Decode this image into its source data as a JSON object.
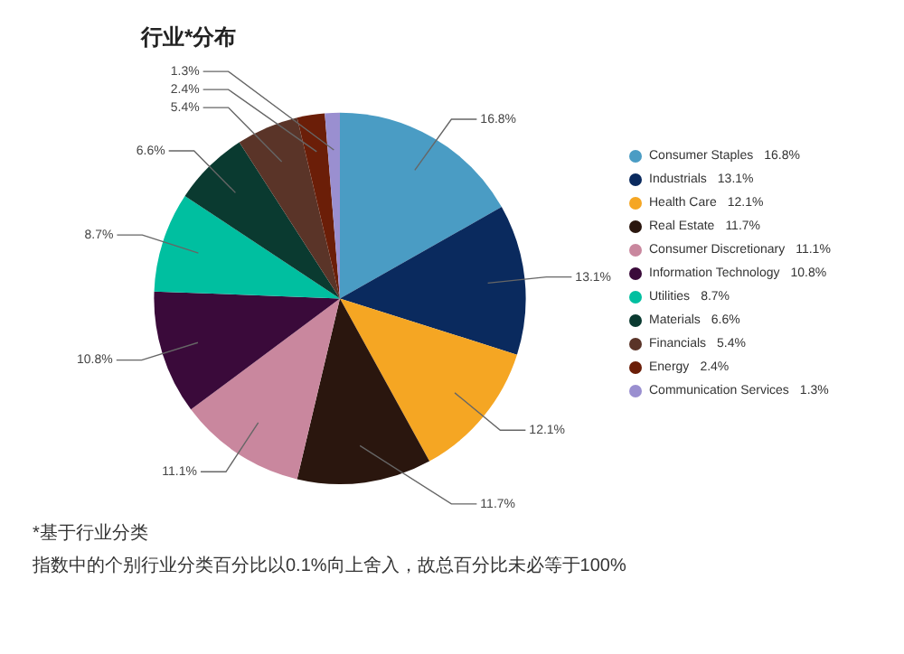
{
  "chart_data": {
    "type": "pie",
    "title": "行业*分布",
    "categories": [
      "Consumer Staples",
      "Industrials",
      "Health Care",
      "Real Estate",
      "Consumer Discretionary",
      "Information Technology",
      "Utilities",
      "Materials",
      "Financials",
      "Energy",
      "Communication Services"
    ],
    "values": [
      16.8,
      13.1,
      12.1,
      11.7,
      11.1,
      10.8,
      8.7,
      6.6,
      5.4,
      2.4,
      1.3
    ],
    "value_labels": [
      "16.8%",
      "13.1%",
      "12.1%",
      "11.7%",
      "11.1%",
      "10.8%",
      "8.7%",
      "6.6%",
      "5.4%",
      "2.4%",
      "1.3%"
    ],
    "colors": [
      "#4a9cc4",
      "#0a2a5e",
      "#f5a623",
      "#2a160e",
      "#c9879e",
      "#3a0a3a",
      "#00bfa0",
      "#0a3a30",
      "#5a3428",
      "#6b1e08",
      "#9a8fd0"
    ],
    "legend": "right",
    "annotations": [
      "*基于行业分类",
      "指数中的个别行业分类百分比以0.1%向上舍入，故总百分比未必等于100%"
    ]
  }
}
